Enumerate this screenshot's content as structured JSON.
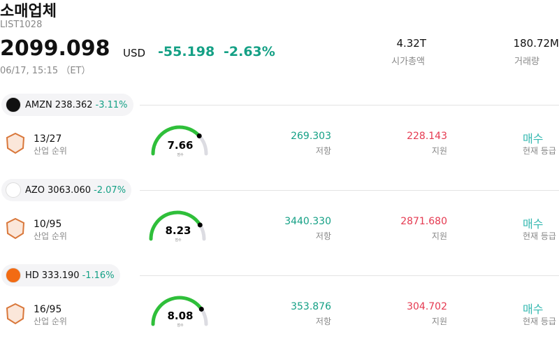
{
  "header": {
    "title": "소매업체",
    "code": "LIST1028",
    "price": "2099.098",
    "currency": "USD",
    "change": "-55.198",
    "change_pct": "-2.63%",
    "time": "06/17, 15:15 （ET）"
  },
  "stats": [
    {
      "value": "4.32T",
      "label": "시가총액"
    },
    {
      "value": "180.72M",
      "label": "거래량"
    }
  ],
  "score_range": [
    0,
    10
  ],
  "stocks": [
    {
      "ticker": "AMZN",
      "price": "238.362",
      "change": "-3.11%",
      "rank": "13/27",
      "rank_label": "산업 순위",
      "score": 7.66,
      "score_label": "점수",
      "resistance": "269.303",
      "resistance_label": "저항",
      "support": "228.143",
      "support_label": "지원",
      "rating": "매수",
      "rating_label": "현재 등급"
    },
    {
      "ticker": "AZO",
      "price": "3063.060",
      "change": "-2.07%",
      "rank": "10/95",
      "rank_label": "산업 순위",
      "score": 8.23,
      "score_label": "점수",
      "resistance": "3440.330",
      "resistance_label": "저항",
      "support": "2871.680",
      "support_label": "지원",
      "rating": "매수",
      "rating_label": "현재 등급"
    },
    {
      "ticker": "HD",
      "price": "333.190",
      "change": "-1.16%",
      "rank": "16/95",
      "rank_label": "산업 순위",
      "score": 8.08,
      "score_label": "점수",
      "resistance": "353.876",
      "resistance_label": "저항",
      "support": "304.702",
      "support_label": "지원",
      "rating": "매수",
      "rating_label": "현재 등급"
    }
  ]
}
